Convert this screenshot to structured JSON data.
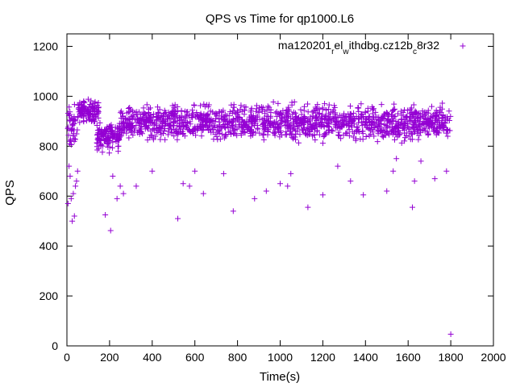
{
  "chart_data": {
    "type": "scatter",
    "title": "QPS vs Time for qp1000.L6",
    "xlabel": "Time(s)",
    "ylabel": "QPS",
    "xlim": [
      0,
      2000
    ],
    "ylim": [
      0,
      1250
    ],
    "xticks": [
      0,
      200,
      400,
      600,
      800,
      1000,
      1200,
      1400,
      1600,
      1800,
      2000
    ],
    "yticks": [
      0,
      200,
      400,
      600,
      800,
      1000,
      1200
    ],
    "grid": false,
    "legend": {
      "position": "top-right",
      "label_parts": [
        {
          "text": "ma120201",
          "sub": false
        },
        {
          "text": "r",
          "sub": true
        },
        {
          "text": "el",
          "sub": false
        },
        {
          "text": "w",
          "sub": true
        },
        {
          "text": "ithdbg.cz12b",
          "sub": false
        },
        {
          "text": "c",
          "sub": true
        },
        {
          "text": "8r32",
          "sub": false
        }
      ]
    },
    "series": [
      {
        "color": "#9400d3",
        "marker": "plus",
        "outliers": [
          {
            "x": 5,
            "y": 570
          },
          {
            "x": 10,
            "y": 720
          },
          {
            "x": 15,
            "y": 680
          },
          {
            "x": 20,
            "y": 590
          },
          {
            "x": 25,
            "y": 500
          },
          {
            "x": 30,
            "y": 610
          },
          {
            "x": 35,
            "y": 520
          },
          {
            "x": 40,
            "y": 640
          },
          {
            "x": 45,
            "y": 660
          },
          {
            "x": 50,
            "y": 700
          },
          {
            "x": 180,
            "y": 525
          },
          {
            "x": 205,
            "y": 462
          },
          {
            "x": 215,
            "y": 680
          },
          {
            "x": 235,
            "y": 590
          },
          {
            "x": 250,
            "y": 640
          },
          {
            "x": 265,
            "y": 610
          },
          {
            "x": 325,
            "y": 640
          },
          {
            "x": 400,
            "y": 700
          },
          {
            "x": 520,
            "y": 510
          },
          {
            "x": 545,
            "y": 650
          },
          {
            "x": 575,
            "y": 640
          },
          {
            "x": 600,
            "y": 700
          },
          {
            "x": 640,
            "y": 610
          },
          {
            "x": 735,
            "y": 690
          },
          {
            "x": 780,
            "y": 540
          },
          {
            "x": 880,
            "y": 590
          },
          {
            "x": 935,
            "y": 620
          },
          {
            "x": 1000,
            "y": 650
          },
          {
            "x": 1035,
            "y": 640
          },
          {
            "x": 1050,
            "y": 690
          },
          {
            "x": 1130,
            "y": 555
          },
          {
            "x": 1200,
            "y": 605
          },
          {
            "x": 1270,
            "y": 720
          },
          {
            "x": 1330,
            "y": 660
          },
          {
            "x": 1390,
            "y": 605
          },
          {
            "x": 1500,
            "y": 620
          },
          {
            "x": 1530,
            "y": 700
          },
          {
            "x": 1545,
            "y": 750
          },
          {
            "x": 1620,
            "y": 555
          },
          {
            "x": 1630,
            "y": 660
          },
          {
            "x": 1660,
            "y": 740
          },
          {
            "x": 1725,
            "y": 670
          },
          {
            "x": 1780,
            "y": 700
          },
          {
            "x": 1800,
            "y": 47
          }
        ],
        "bands": [
          {
            "x_range": [
              0,
              50
            ],
            "y_range": [
              740,
              1000
            ],
            "count": 40
          },
          {
            "x_range": [
              50,
              150
            ],
            "y_range": [
              880,
              1000
            ],
            "count": 110
          },
          {
            "x_range": [
              140,
              250
            ],
            "y_range": [
              760,
              920
            ],
            "count": 130
          },
          {
            "x_range": [
              250,
              1800
            ],
            "y_range": [
              800,
              990
            ],
            "count": 1450
          }
        ]
      }
    ]
  }
}
